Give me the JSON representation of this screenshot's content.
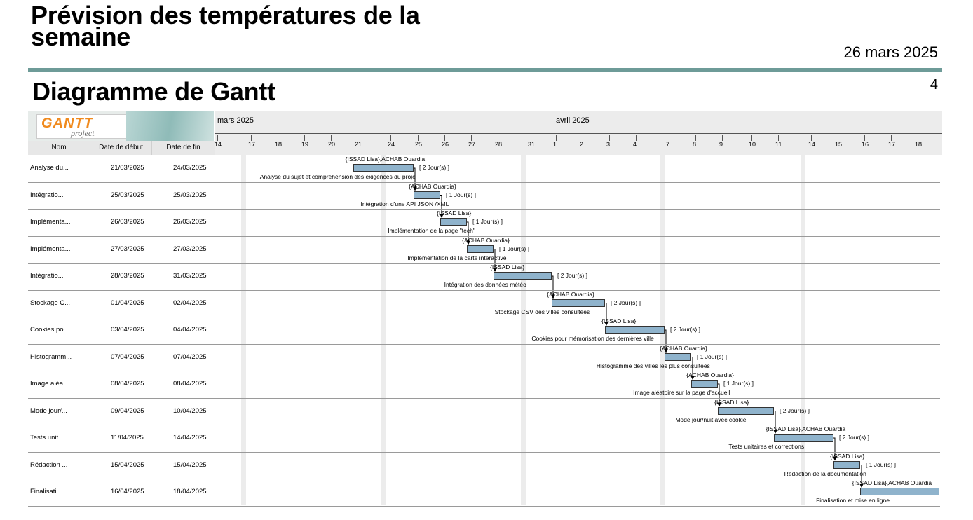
{
  "header": {
    "title": "Prévision des températures de la semaine",
    "date": "26 mars 2025",
    "subtitle": "Diagramme de Gantt",
    "page_number": "4"
  },
  "logo": {
    "word": "GANTT",
    "sub": "project"
  },
  "columns": {
    "name": "Nom",
    "start": "Date de début",
    "end": "Date de fin"
  },
  "timeline": {
    "months": [
      "mars 2025",
      "avril 2025"
    ],
    "days": [
      "14",
      "17",
      "18",
      "19",
      "20",
      "21",
      "24",
      "25",
      "26",
      "27",
      "28",
      "31",
      "1",
      "2",
      "3",
      "4",
      "7",
      "8",
      "9",
      "10",
      "11",
      "14",
      "15",
      "16",
      "17",
      "18"
    ]
  },
  "tasks": [
    {
      "name": "Analyse du...",
      "start": "21/03/2025",
      "end": "24/03/2025",
      "res": "{ISSAD Lisa},ACHAB Ouardia",
      "desc": "Analyse du sujet et compréhension des exigences du proje",
      "dur": "[ 2 Jour(s) ]"
    },
    {
      "name": "Intégratio...",
      "start": "25/03/2025",
      "end": "25/03/2025",
      "res": "{ACHAB Ouardia}",
      "desc": "Intégration d'une API JSON /XML",
      "dur": "[ 1 Jour(s) ]"
    },
    {
      "name": "Implémenta...",
      "start": "26/03/2025",
      "end": "26/03/2025",
      "res": "{ISSAD Lisa}",
      "desc": "Implémentation de la page \"tech\"",
      "dur": "[ 1 Jour(s) ]"
    },
    {
      "name": "Implémenta...",
      "start": "27/03/2025",
      "end": "27/03/2025",
      "res": "{ACHAB Ouardia}",
      "desc": "Implémentation de la carte interactive",
      "dur": "[ 1 Jour(s) ]"
    },
    {
      "name": "Intégratio...",
      "start": "28/03/2025",
      "end": "31/03/2025",
      "res": "{ISSAD Lisa}",
      "desc": "Intégration des données météo",
      "dur": "[ 2 Jour(s) ]"
    },
    {
      "name": "Stockage C...",
      "start": "01/04/2025",
      "end": "02/04/2025",
      "res": "{ACHAB Ouardia}",
      "desc": "Stockage CSV des villes consultées",
      "dur": "[ 2 Jour(s) ]"
    },
    {
      "name": "Cookies po...",
      "start": "03/04/2025",
      "end": "04/04/2025",
      "res": "{ISSAD Lisa}",
      "desc": "Cookies pour mémorisation des dernières ville",
      "dur": "[ 2 Jour(s) ]"
    },
    {
      "name": "Histogramm...",
      "start": "07/04/2025",
      "end": "07/04/2025",
      "res": "{ACHAB Ouardia}",
      "desc": "Histogramme des villes les plus consultées",
      "dur": "[ 1 Jour(s) ]"
    },
    {
      "name": "Image aléa...",
      "start": "08/04/2025",
      "end": "08/04/2025",
      "res": "{ACHAB Ouardia}",
      "desc": "Image aléatoire sur la page d'accueil",
      "dur": "[ 1 Jour(s) ]"
    },
    {
      "name": "Mode jour/...",
      "start": "09/04/2025",
      "end": "10/04/2025",
      "res": "{ISSAD Lisa}",
      "desc": "Mode jour/nuit avec cookie",
      "dur": "[ 2 Jour(s) ]"
    },
    {
      "name": "Tests unit...",
      "start": "11/04/2025",
      "end": "14/04/2025",
      "res": "{ISSAD Lisa},ACHAB Ouardia",
      "desc": "Tests unitaires et corrections",
      "dur": "[ 2 Jour(s) ]"
    },
    {
      "name": "Rédaction ...",
      "start": "15/04/2025",
      "end": "15/04/2025",
      "res": "{ISSAD Lisa}",
      "desc": "Rédaction de la documentation",
      "dur": "[ 1 Jour(s) ]"
    },
    {
      "name": "Finalisati...",
      "start": "16/04/2025",
      "end": "18/04/2025",
      "res": "{ISSAD Lisa},ACHAB Ouardia",
      "desc": "Finalisation et mise en ligne",
      "dur": ""
    }
  ],
  "colors": {
    "bar": "#8fb3cc",
    "rule": "#6e9b98",
    "weekend": "#ececec"
  }
}
